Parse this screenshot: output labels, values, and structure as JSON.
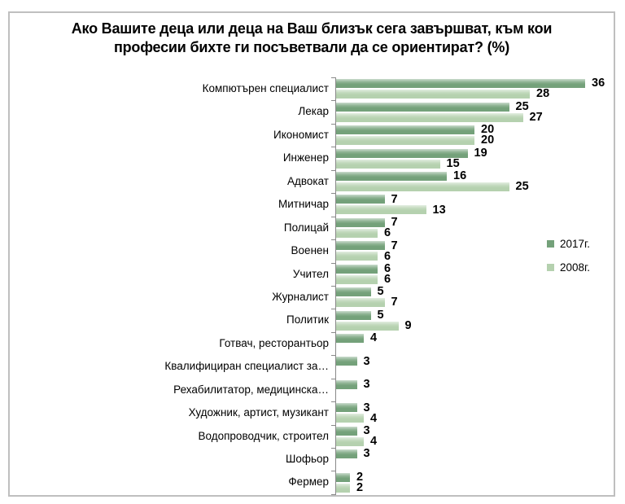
{
  "window": {
    "background": "#ffffff",
    "frame_border_color": "#bfbfbf"
  },
  "chart_data": {
    "type": "bar",
    "orientation": "horizontal",
    "title": "Ако Вашите деца или деца на Ваш близък сега завършват, към кои професии бихте ги посъветвали да се ориентират? (%)",
    "categories": [
      "Компютърен специалист",
      "Лекар",
      "Икономист",
      "Инженер",
      "Адвокат",
      "Митничар",
      "Полицай",
      "Военен",
      "Учител",
      "Журналист",
      "Политик",
      "Готвач, ресторантьор",
      "Квалифициран специалист за…",
      "Рехабилитатор, медицинска…",
      "Художник, артист, музикант",
      "Водопроводчик, строител",
      "Шофьор",
      "Фермер"
    ],
    "series": [
      {
        "name": "2017г.",
        "year": "2017",
        "color": "#74a17a",
        "values": [
          36,
          25,
          20,
          19,
          16,
          7,
          7,
          7,
          6,
          5,
          5,
          4,
          3,
          3,
          3,
          3,
          3,
          2
        ]
      },
      {
        "name": "2008г.",
        "year": "2008",
        "color": "#b5d1af",
        "values": [
          28,
          27,
          20,
          15,
          25,
          13,
          6,
          6,
          6,
          7,
          9,
          null,
          null,
          null,
          4,
          4,
          null,
          2
        ]
      }
    ],
    "value_labels": true,
    "xlim": [
      0,
      40
    ],
    "grid": false,
    "axis_color": "#898989",
    "legend_position": "middle-right"
  }
}
